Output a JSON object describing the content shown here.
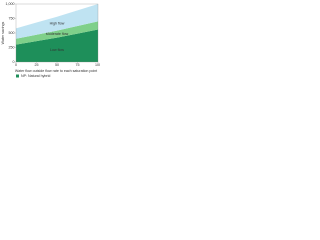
{
  "chart_data": {
    "type": "stacked-area",
    "x": [
      0,
      25,
      50,
      75,
      100
    ],
    "xlim": [
      0,
      100
    ],
    "xticks": [
      0,
      25,
      50,
      75,
      100
    ],
    "ylim": [
      0,
      1000
    ],
    "yticks": [
      0,
      250,
      500,
      750,
      {
        "value": 1000,
        "label": "1,000"
      }
    ],
    "y_label": "Water savings",
    "x_label": "Water flow outside flow rate to each saturation point",
    "series": [
      {
        "name": "Low flow",
        "color": "#1e8f5a",
        "values": [
          300,
          360,
          420,
          490,
          560
        ]
      },
      {
        "name": "Moderate flow",
        "color": "#7fd08a",
        "values": [
          100,
          110,
          120,
          130,
          140
        ]
      },
      {
        "name": "High flow",
        "color": "#bfe3f2",
        "values": [
          180,
          210,
          240,
          270,
          300
        ]
      }
    ],
    "legend": "NP: Natural hybrid",
    "legend_color": "#1e8f5a"
  }
}
